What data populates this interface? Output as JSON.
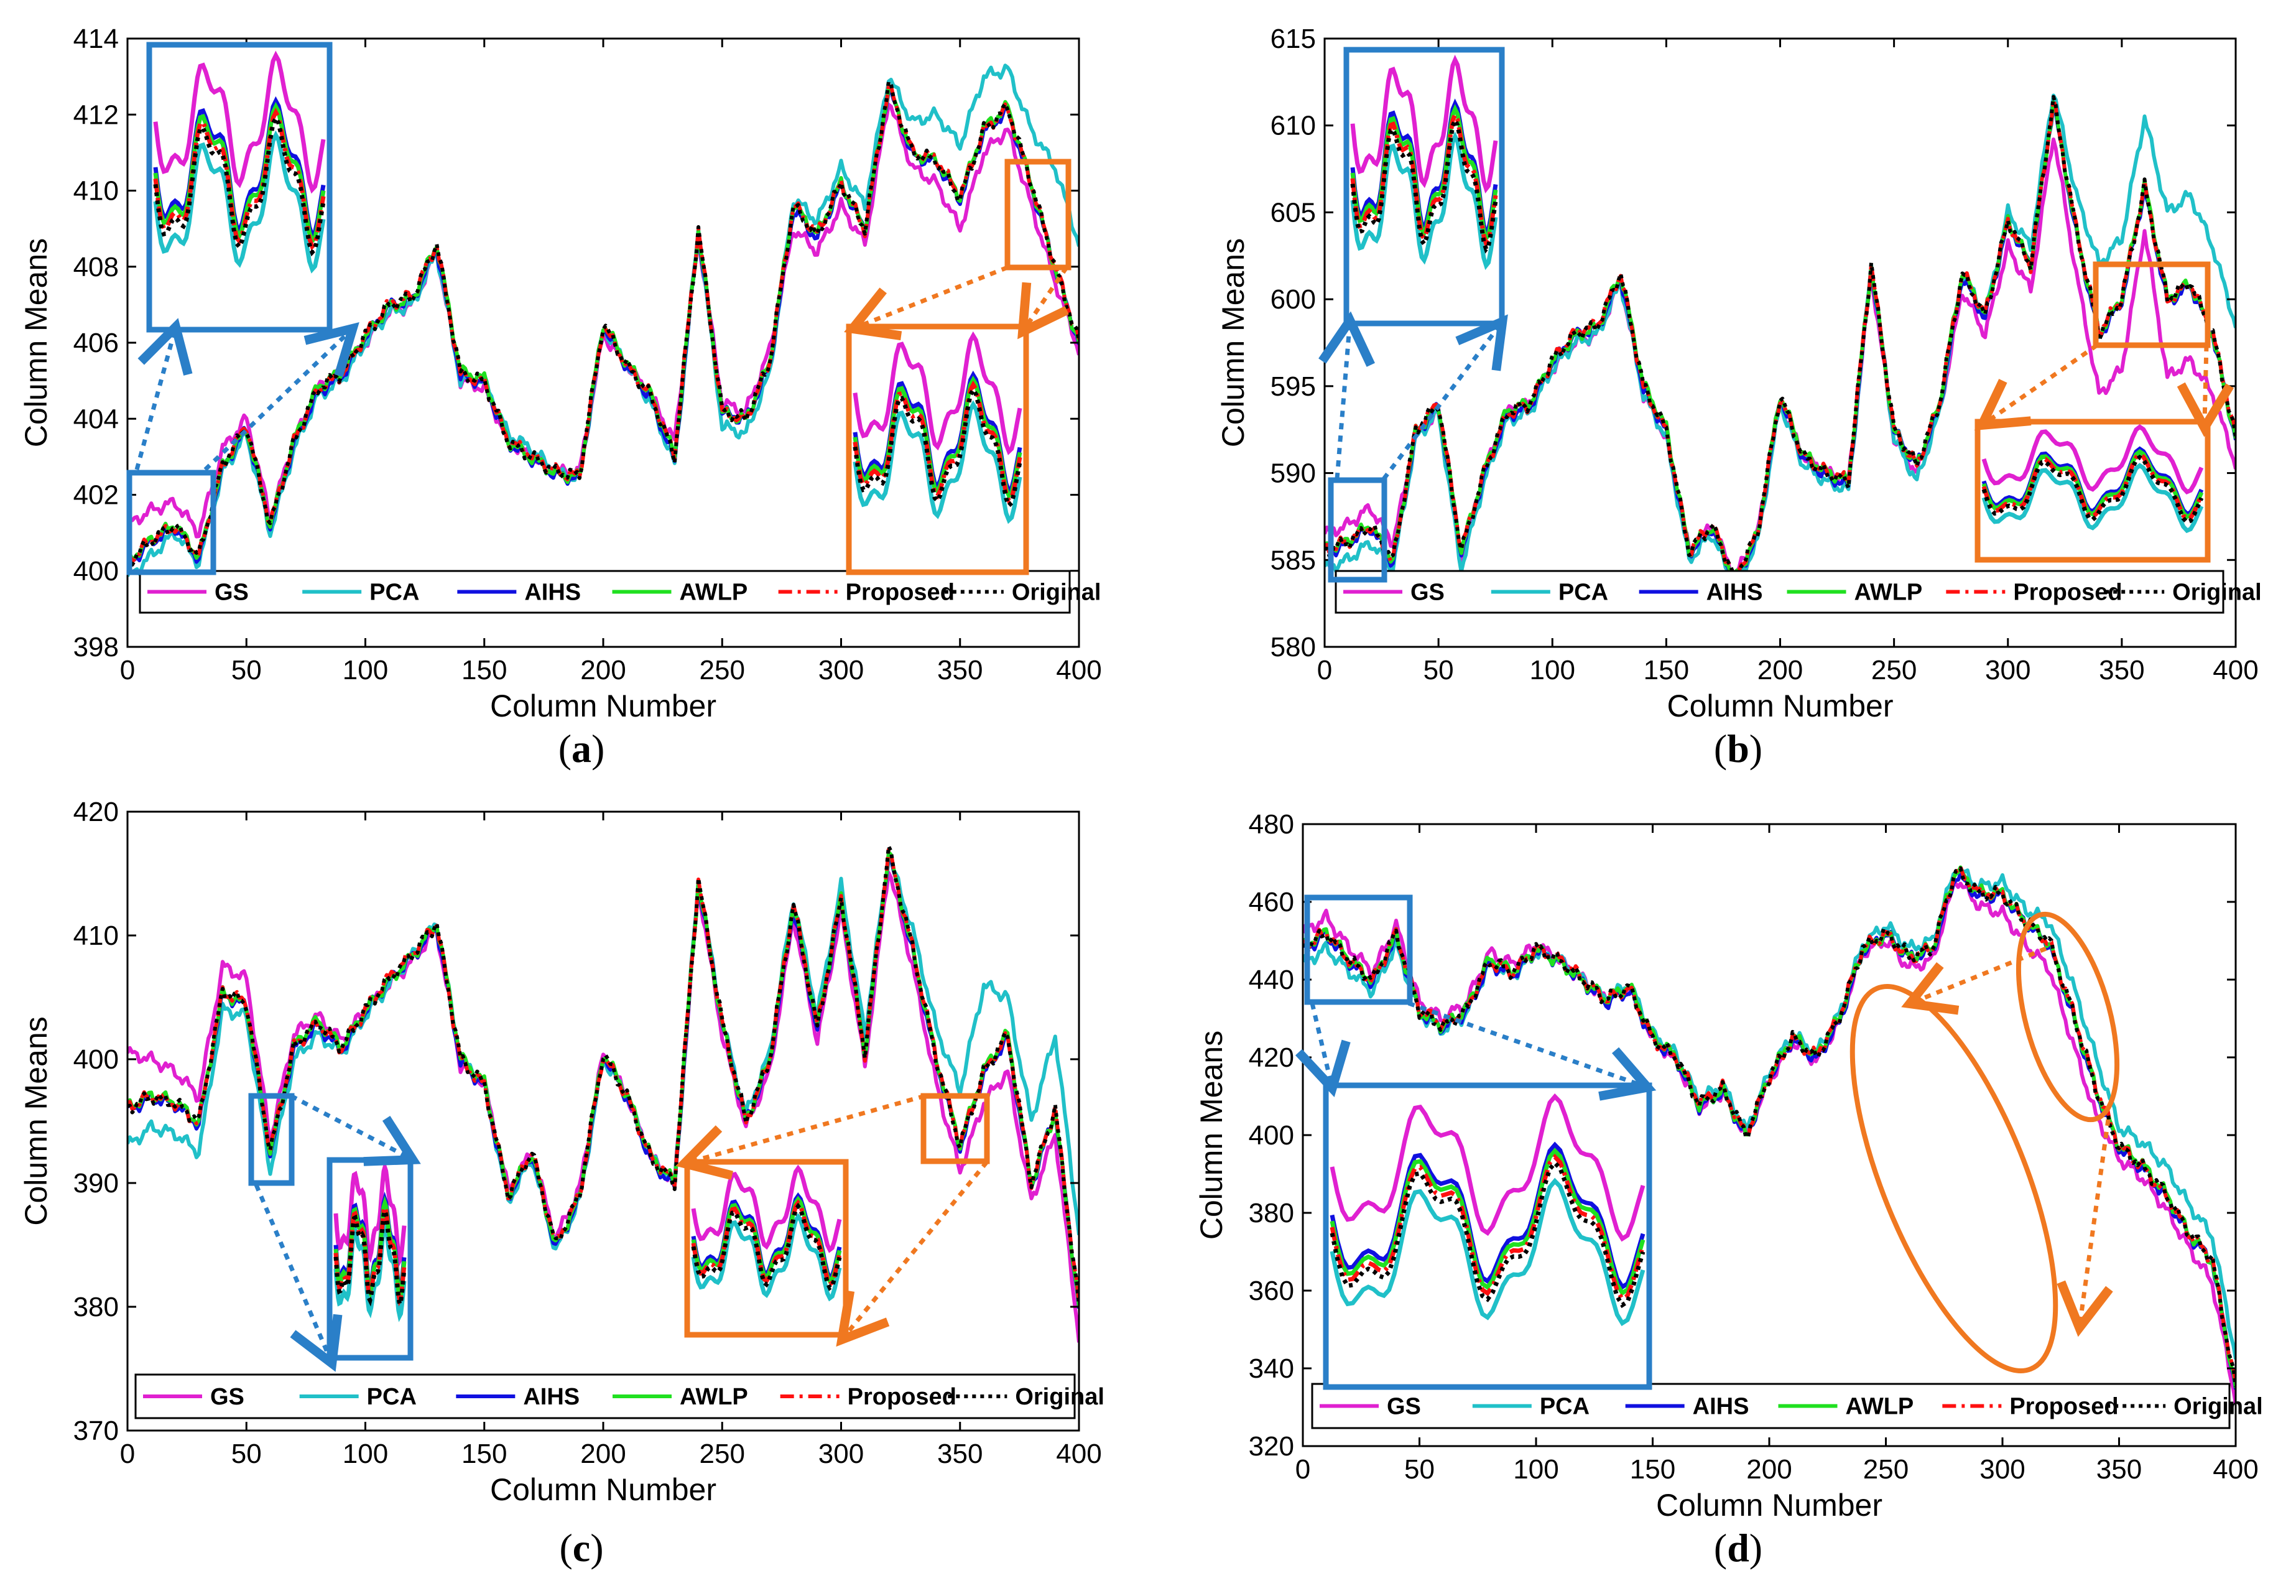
{
  "legend": {
    "entries": [
      {
        "name": "GS",
        "color": "#e020d0",
        "dash": "solid"
      },
      {
        "name": "PCA",
        "color": "#20c0c8",
        "dash": "solid"
      },
      {
        "name": "AIHS",
        "color": "#1010e0",
        "dash": "solid"
      },
      {
        "name": "AWLP",
        "color": "#20e020",
        "dash": "solid"
      },
      {
        "name": "Proposed",
        "color": "#ff1010",
        "dash": "dashdot"
      },
      {
        "name": "Original",
        "color": "#000000",
        "dash": "dotted"
      }
    ]
  },
  "zoom_colors": {
    "blue": "#2a7fc8",
    "orange": "#f07820"
  },
  "chart_data": [
    {
      "caption_letter": "a",
      "type": "line",
      "xlabel": "Column Number",
      "ylabel": "Column Means",
      "xlim": [
        0,
        400
      ],
      "ylim": [
        398,
        414
      ],
      "xticks": [
        0,
        50,
        100,
        150,
        200,
        250,
        300,
        350,
        400
      ],
      "yticks": [
        398,
        400,
        402,
        404,
        406,
        408,
        410,
        412,
        414
      ],
      "x": [
        0,
        10,
        20,
        30,
        40,
        50,
        60,
        70,
        80,
        90,
        100,
        110,
        120,
        130,
        140,
        150,
        160,
        170,
        180,
        190,
        200,
        210,
        220,
        230,
        240,
        250,
        260,
        270,
        280,
        290,
        300,
        310,
        320,
        330,
        340,
        350,
        360,
        370,
        380,
        390,
        400
      ],
      "series": [
        {
          "name": "Original",
          "values": [
            400.2,
            400.8,
            401.2,
            400.4,
            402.8,
            403.8,
            401.2,
            403.4,
            404.8,
            405.2,
            406.2,
            407.0,
            407.2,
            408.6,
            405.2,
            405.0,
            403.4,
            403.0,
            402.6,
            402.5,
            406.5,
            405.4,
            404.6,
            403.0,
            409.0,
            404.2,
            404.0,
            405.5,
            409.6,
            408.8,
            410.2,
            409.0,
            412.8,
            411.0,
            410.8,
            409.8,
            411.6,
            412.2,
            410.2,
            408.0,
            406.0
          ]
        },
        {
          "name": "GS",
          "values": [
            401.2,
            401.6,
            401.8,
            401.0,
            403.2,
            404.0,
            401.4,
            403.4,
            404.8,
            405.2,
            406.0,
            406.8,
            407.0,
            408.4,
            405.0,
            404.8,
            403.4,
            403.0,
            402.6,
            402.6,
            406.2,
            405.4,
            404.6,
            403.4,
            408.8,
            404.4,
            404.2,
            405.8,
            409.0,
            408.4,
            409.6,
            408.6,
            412.4,
            410.6,
            410.2,
            409.0,
            411.0,
            411.6,
            409.6,
            407.6,
            405.8
          ]
        },
        {
          "name": "PCA",
          "values": [
            399.8,
            400.4,
            401.0,
            400.2,
            402.6,
            403.6,
            401.0,
            403.2,
            404.6,
            405.0,
            406.0,
            406.8,
            407.0,
            408.4,
            405.0,
            405.0,
            403.6,
            403.2,
            402.6,
            402.4,
            406.4,
            405.4,
            404.4,
            402.8,
            409.0,
            403.8,
            403.6,
            405.2,
            409.8,
            409.2,
            410.6,
            409.6,
            413.0,
            411.8,
            412.0,
            411.2,
            413.0,
            413.2,
            411.6,
            410.6,
            408.6
          ]
        }
      ]
    },
    {
      "caption_letter": "b",
      "type": "line",
      "xlabel": "Column Number",
      "ylabel": "Column Means",
      "xlim": [
        0,
        400
      ],
      "ylim": [
        580,
        615
      ],
      "xticks": [
        0,
        50,
        100,
        150,
        200,
        250,
        300,
        350,
        400
      ],
      "yticks": [
        580,
        585,
        590,
        595,
        600,
        605,
        610,
        615
      ],
      "x": [
        0,
        10,
        20,
        30,
        40,
        50,
        60,
        70,
        80,
        90,
        100,
        110,
        120,
        130,
        140,
        150,
        160,
        170,
        180,
        190,
        200,
        210,
        220,
        230,
        240,
        250,
        260,
        270,
        280,
        290,
        300,
        310,
        320,
        330,
        340,
        350,
        360,
        370,
        380,
        390,
        400
      ],
      "series": [
        {
          "name": "Original",
          "values": [
            585.5,
            586.0,
            587.0,
            585.0,
            592.5,
            594.0,
            585.5,
            590.0,
            593.5,
            594.0,
            596.5,
            598.0,
            598.5,
            601.5,
            595.0,
            592.5,
            585.5,
            587.0,
            584.0,
            586.5,
            594.5,
            591.0,
            590.0,
            589.5,
            602.0,
            592.5,
            590.5,
            594.0,
            601.5,
            599.0,
            604.5,
            602.0,
            611.5,
            604.0,
            598.0,
            600.0,
            606.5,
            600.0,
            601.0,
            598.0,
            592.0
          ]
        },
        {
          "name": "GS",
          "values": [
            586.5,
            587.0,
            588.0,
            586.0,
            592.0,
            593.5,
            585.0,
            590.0,
            593.5,
            594.0,
            596.0,
            597.5,
            598.0,
            601.0,
            594.5,
            592.0,
            585.5,
            587.0,
            584.0,
            586.5,
            594.0,
            591.0,
            590.0,
            589.5,
            601.5,
            592.0,
            590.0,
            593.5,
            600.5,
            598.0,
            603.0,
            600.5,
            609.5,
            601.5,
            594.5,
            596.0,
            604.0,
            595.5,
            596.5,
            594.5,
            590.5
          ]
        },
        {
          "name": "PCA",
          "values": [
            584.5,
            585.0,
            586.0,
            584.5,
            592.0,
            593.5,
            584.5,
            589.5,
            593.0,
            593.5,
            596.0,
            597.5,
            598.0,
            601.0,
            594.5,
            592.0,
            585.0,
            586.5,
            583.5,
            586.0,
            594.0,
            590.5,
            589.5,
            589.0,
            602.0,
            592.0,
            589.5,
            593.5,
            601.5,
            599.0,
            605.0,
            603.0,
            612.0,
            606.0,
            602.0,
            603.5,
            610.5,
            605.0,
            606.0,
            603.0,
            598.5
          ]
        }
      ]
    },
    {
      "caption_letter": "c",
      "type": "line",
      "xlabel": "Column Number",
      "ylabel": "Column Means",
      "xlim": [
        0,
        400
      ],
      "ylim": [
        370,
        420
      ],
      "xticks": [
        0,
        50,
        100,
        150,
        200,
        250,
        300,
        350,
        400
      ],
      "yticks": [
        370,
        380,
        390,
        400,
        410,
        420
      ],
      "x": [
        0,
        10,
        20,
        30,
        40,
        50,
        60,
        70,
        80,
        90,
        100,
        110,
        120,
        130,
        140,
        150,
        160,
        170,
        180,
        190,
        200,
        210,
        220,
        230,
        240,
        250,
        260,
        270,
        280,
        290,
        300,
        310,
        320,
        330,
        340,
        350,
        360,
        370,
        380,
        390,
        400
      ],
      "series": [
        {
          "name": "Original",
          "values": [
            396.0,
            397.0,
            396.5,
            395.0,
            405.5,
            404.5,
            392.5,
            401.0,
            403.0,
            401.0,
            404.0,
            406.5,
            408.5,
            411.0,
            400.0,
            398.0,
            389.0,
            392.5,
            385.0,
            389.0,
            400.5,
            397.0,
            392.0,
            390.0,
            414.5,
            403.0,
            395.0,
            400.0,
            412.5,
            402.5,
            413.0,
            400.5,
            417.0,
            409.0,
            400.0,
            393.0,
            399.0,
            402.0,
            390.0,
            396.0,
            380.0
          ]
        },
        {
          "name": "GS",
          "values": [
            400.5,
            400.0,
            399.0,
            397.0,
            407.5,
            406.5,
            393.5,
            402.0,
            403.5,
            401.5,
            404.0,
            406.0,
            408.0,
            410.5,
            399.5,
            398.0,
            389.5,
            392.5,
            385.5,
            389.5,
            400.5,
            397.0,
            392.0,
            390.0,
            414.0,
            402.0,
            394.5,
            399.0,
            411.5,
            401.5,
            412.0,
            399.5,
            415.5,
            407.5,
            398.0,
            391.0,
            396.5,
            399.0,
            388.5,
            394.0,
            377.5
          ]
        },
        {
          "name": "PCA",
          "values": [
            393.0,
            394.5,
            394.0,
            392.5,
            404.0,
            403.5,
            391.0,
            400.0,
            402.0,
            400.5,
            403.5,
            406.0,
            408.5,
            411.0,
            400.0,
            398.0,
            388.5,
            392.0,
            384.5,
            388.5,
            400.0,
            397.0,
            392.0,
            390.0,
            414.5,
            403.0,
            395.5,
            400.5,
            413.0,
            403.5,
            414.0,
            402.0,
            416.5,
            410.5,
            402.5,
            397.5,
            406.0,
            405.0,
            395.0,
            402.0,
            386.0
          ]
        }
      ]
    },
    {
      "caption_letter": "d",
      "type": "line",
      "xlabel": "Column Number",
      "ylabel": "Column Means",
      "xlim": [
        0,
        400
      ],
      "ylim": [
        320,
        480
      ],
      "xticks": [
        0,
        50,
        100,
        150,
        200,
        250,
        300,
        350,
        400
      ],
      "yticks": [
        320,
        340,
        360,
        380,
        400,
        420,
        440,
        460,
        480
      ],
      "x": [
        0,
        10,
        20,
        30,
        40,
        50,
        60,
        70,
        80,
        90,
        100,
        110,
        120,
        130,
        140,
        150,
        160,
        170,
        180,
        190,
        200,
        210,
        220,
        230,
        240,
        250,
        260,
        270,
        280,
        290,
        300,
        310,
        320,
        330,
        340,
        350,
        360,
        370,
        380,
        390,
        400
      ],
      "series": [
        {
          "name": "Original",
          "values": [
            448,
            452,
            445,
            440,
            452,
            432,
            428,
            432,
            445,
            442,
            448,
            445,
            440,
            435,
            438,
            425,
            420,
            408,
            412,
            400,
            415,
            425,
            420,
            430,
            448,
            452,
            446,
            448,
            468,
            462,
            462,
            455,
            450,
            432,
            412,
            397,
            392,
            385,
            375,
            368,
            335
          ]
        },
        {
          "name": "GS",
          "values": [
            452,
            456,
            448,
            442,
            454,
            434,
            430,
            434,
            447,
            444,
            449,
            445,
            440,
            435,
            438,
            425,
            419,
            407,
            411,
            400,
            414,
            424,
            419,
            429,
            447,
            450,
            443,
            445,
            466,
            459,
            457,
            449,
            443,
            424,
            405,
            394,
            389,
            381,
            371,
            362,
            332
          ]
        },
        {
          "name": "PCA",
          "values": [
            444,
            448,
            442,
            437,
            449,
            431,
            427,
            431,
            444,
            441,
            447,
            445,
            440,
            435,
            439,
            426,
            421,
            409,
            413,
            401,
            416,
            426,
            421,
            431,
            449,
            454,
            448,
            450,
            469,
            464,
            465,
            458,
            455,
            439,
            420,
            402,
            398,
            392,
            382,
            374,
            343
          ]
        }
      ]
    }
  ]
}
